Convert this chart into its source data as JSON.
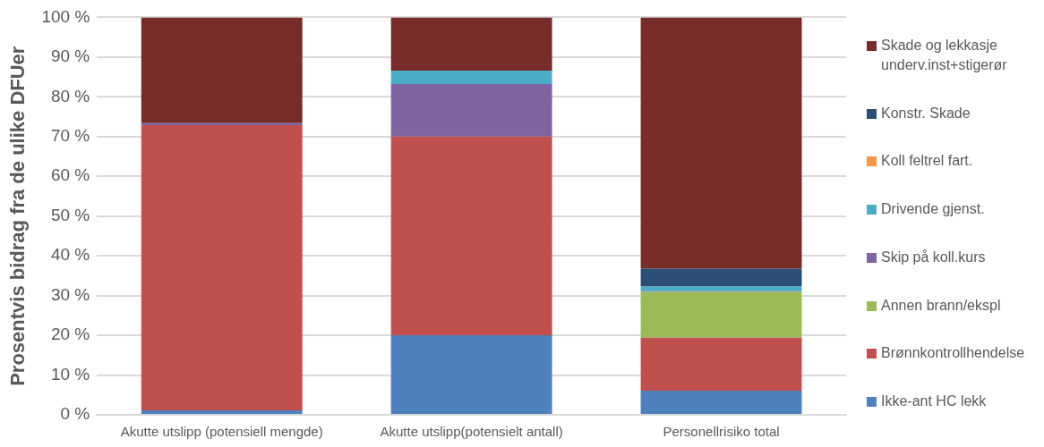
{
  "chart_data": {
    "type": "bar",
    "stacked": true,
    "ylabel": "Prosentvis bidrag fra de ulike DFUer",
    "categories": [
      "Akutte utslipp (potensiell mengde)",
      "Akutte utslipp(potensielt antall)",
      "Personellrisiko total"
    ],
    "series": [
      {
        "name": "Ikke-ant HC lekk",
        "color": "#4f81bd",
        "values": [
          1.1,
          20,
          6.1
        ]
      },
      {
        "name": "Brønnkontrollhendelse",
        "color": "#c0504d",
        "values": [
          71.8,
          50,
          13.3
        ]
      },
      {
        "name": "Annen brann/ekspl",
        "color": "#9bbb59",
        "values": [
          0,
          0,
          11.5
        ]
      },
      {
        "name": "Skip på koll.kurs",
        "color": "#8064a2",
        "values": [
          0.5,
          13.2,
          0.2
        ]
      },
      {
        "name": "Drivende gjenst.",
        "color": "#4bacc6",
        "values": [
          0,
          3.4,
          1.2
        ]
      },
      {
        "name": "Koll feltrel fart.",
        "color": "#f79646",
        "values": [
          0,
          0,
          0
        ]
      },
      {
        "name": "Konstr. Skade",
        "color": "#2c4d75",
        "values": [
          0,
          0,
          4.5
        ]
      },
      {
        "name": "Skade og lekkasje underv.inst+stigerør",
        "color": "#772c2a",
        "values": [
          26.6,
          13.4,
          63.2
        ]
      }
    ],
    "ylim": [
      0,
      100
    ],
    "yticks": [
      {
        "value": 0,
        "label": "0 %"
      },
      {
        "value": 10,
        "label": "10 %"
      },
      {
        "value": 20,
        "label": "20 %"
      },
      {
        "value": 30,
        "label": "30 %"
      },
      {
        "value": 40,
        "label": "40 %"
      },
      {
        "value": 50,
        "label": "50 %"
      },
      {
        "value": 60,
        "label": "60 %"
      },
      {
        "value": 70,
        "label": "70 %"
      },
      {
        "value": 80,
        "label": "80 %"
      },
      {
        "value": 90,
        "label": "90 %"
      },
      {
        "value": 100,
        "label": "100 %"
      }
    ],
    "grid": "y",
    "legend": "right"
  }
}
